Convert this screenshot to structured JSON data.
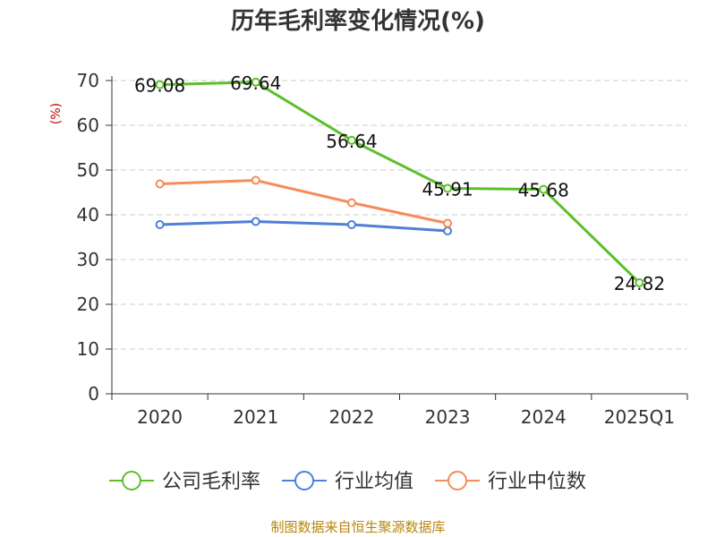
{
  "chart_data": {
    "type": "line",
    "title": "历年毛利率变化情况(%)",
    "ylabel": "(%)",
    "categories": [
      "2020",
      "2021",
      "2022",
      "2023",
      "2024",
      "2025Q1"
    ],
    "ylim": [
      0,
      70
    ],
    "yticks": [
      0,
      10,
      20,
      30,
      40,
      50,
      60,
      70
    ],
    "grid": true,
    "legend_position": "bottom",
    "series": [
      {
        "name": "公司毛利率",
        "color": "#5cbf2a",
        "values": [
          69.08,
          69.64,
          56.64,
          45.91,
          45.68,
          24.82
        ],
        "labels": [
          "69.08",
          "69.64",
          "56.64",
          "45.91",
          "45.68",
          "24.82"
        ]
      },
      {
        "name": "行业均值",
        "color": "#4f7fd8",
        "values": [
          37.8,
          38.5,
          37.8,
          36.4,
          null,
          null
        ]
      },
      {
        "name": "行业中位数",
        "color": "#f58c5a",
        "values": [
          46.9,
          47.7,
          42.7,
          38.1,
          null,
          null
        ]
      }
    ]
  },
  "source": "制图数据来自恒生聚源数据库"
}
